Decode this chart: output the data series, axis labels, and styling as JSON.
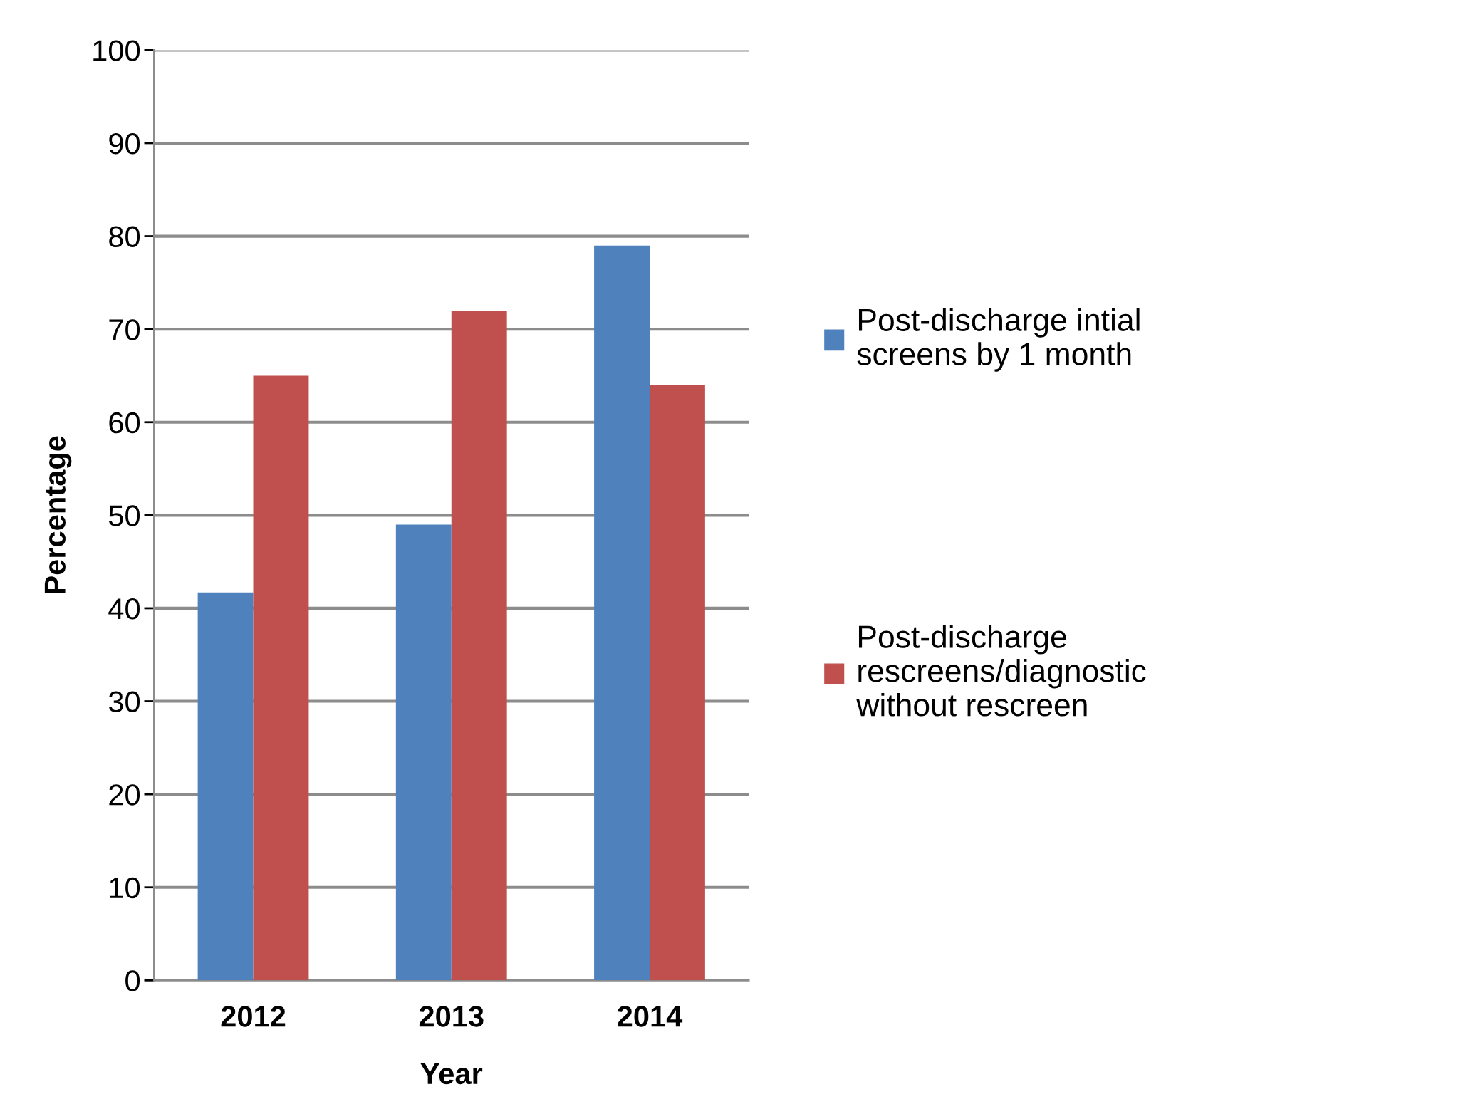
{
  "chart_data": {
    "type": "bar",
    "xlabel": "Year",
    "ylabel": "Percentage",
    "categories": [
      "2012",
      "2013",
      "2014"
    ],
    "series": [
      {
        "name": "Post-discharge intial\nscreens by 1 month",
        "color": "#4f81bd",
        "values": [
          41.7,
          49,
          79
        ]
      },
      {
        "name": "Post-discharge\nrescreens/diagnostic\nwithout rescreen",
        "color": "#c0504d",
        "values": [
          65,
          72,
          64
        ]
      }
    ],
    "ylim": [
      0,
      100
    ],
    "yticks": [
      0,
      10,
      20,
      30,
      40,
      50,
      60,
      70,
      80,
      90,
      100
    ],
    "grid": "y",
    "legend": "right"
  }
}
